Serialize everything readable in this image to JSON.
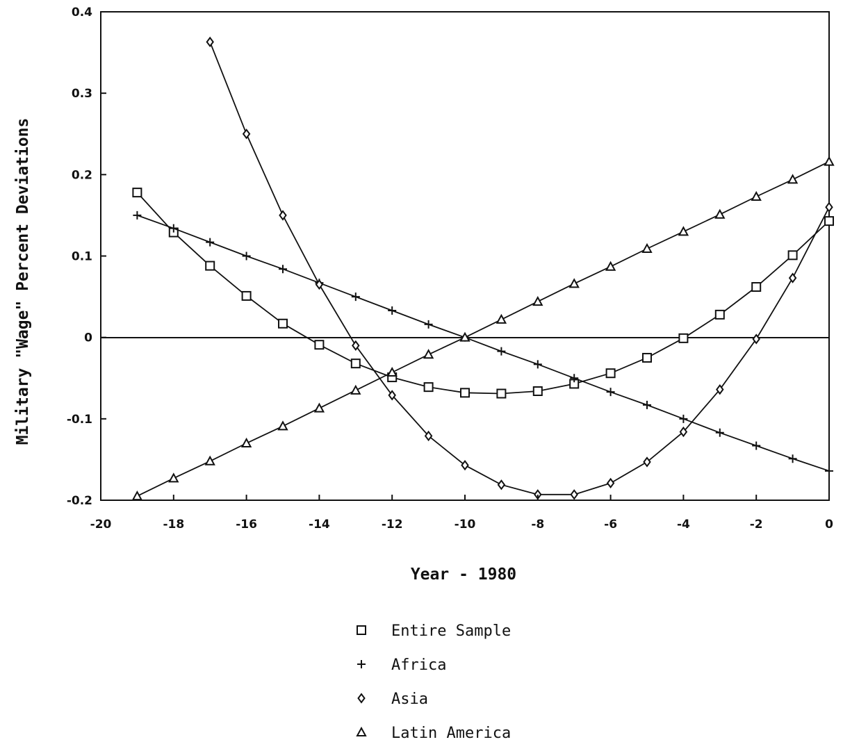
{
  "chart_data": {
    "type": "line",
    "title": "",
    "xlabel": "Year - 1980",
    "ylabel": "Military \"Wage\" Percent Deviations",
    "xlim": [
      -20,
      0
    ],
    "ylim": [
      -0.2,
      0.4
    ],
    "xticks": [
      -20,
      -18,
      -16,
      -14,
      -12,
      -10,
      -8,
      -6,
      -4,
      -2,
      0
    ],
    "xtick_labels": [
      "-20",
      "-18",
      "-16",
      "-14",
      "-12",
      "-10",
      "-8",
      "-6",
      "-4",
      "-2",
      "0"
    ],
    "yticks": [
      0.4,
      0.3,
      0.2,
      0.1,
      0,
      -0.1,
      -0.2
    ],
    "ytick_labels": [
      "0.4",
      "0.3",
      "0.2",
      "0.1",
      "0",
      "-0.1",
      "-0.2"
    ],
    "zero_line": true,
    "grid": false,
    "legend_position": "bottom",
    "series": [
      {
        "name": "Entire Sample",
        "marker": "square",
        "x": [
          -19,
          -18,
          -17,
          -16,
          -15,
          -14,
          -13,
          -12,
          -11,
          -10,
          -9,
          -8,
          -7,
          -6,
          -5,
          -4,
          -3,
          -2,
          -1,
          0
        ],
        "values": [
          0.178,
          0.129,
          0.088,
          0.051,
          0.017,
          -0.009,
          -0.032,
          -0.049,
          -0.061,
          -0.068,
          -0.069,
          -0.066,
          -0.057,
          -0.044,
          -0.025,
          -0.001,
          0.028,
          0.062,
          0.101,
          0.143
        ]
      },
      {
        "name": "Africa",
        "marker": "plus",
        "x": [
          -19,
          -18,
          -17,
          -16,
          -15,
          -14,
          -13,
          -12,
          -11,
          -10,
          -9,
          -8,
          -7,
          -6,
          -5,
          -4,
          -3,
          -2,
          -1,
          0
        ],
        "values": [
          0.15,
          0.134,
          0.117,
          0.1,
          0.084,
          0.067,
          0.05,
          0.033,
          0.016,
          0.0,
          -0.017,
          -0.033,
          -0.05,
          -0.067,
          -0.083,
          -0.1,
          -0.117,
          -0.133,
          -0.149,
          -0.164
        ]
      },
      {
        "name": "Asia",
        "marker": "diamond",
        "x": [
          -17,
          -16,
          -15,
          -14,
          -13,
          -12,
          -11,
          -10,
          -9,
          -8,
          -7,
          -6,
          -5,
          -4,
          -3,
          -2,
          -1,
          0
        ],
        "values": [
          0.363,
          0.25,
          0.15,
          0.065,
          -0.01,
          -0.071,
          -0.121,
          -0.157,
          -0.181,
          -0.193,
          -0.193,
          -0.179,
          -0.153,
          -0.116,
          -0.064,
          -0.002,
          0.073,
          0.16
        ]
      },
      {
        "name": "Latin America",
        "marker": "triangle",
        "x": [
          -19,
          -18,
          -17,
          -16,
          -15,
          -14,
          -13,
          -12,
          -11,
          -10,
          -9,
          -8,
          -7,
          -6,
          -5,
          -4,
          -3,
          -2,
          -1,
          0
        ],
        "values": [
          -0.195,
          -0.173,
          -0.152,
          -0.13,
          -0.109,
          -0.087,
          -0.065,
          -0.043,
          -0.021,
          0.0,
          0.022,
          0.044,
          0.066,
          0.087,
          0.109,
          0.13,
          0.151,
          0.173,
          0.194,
          0.216
        ]
      }
    ]
  }
}
